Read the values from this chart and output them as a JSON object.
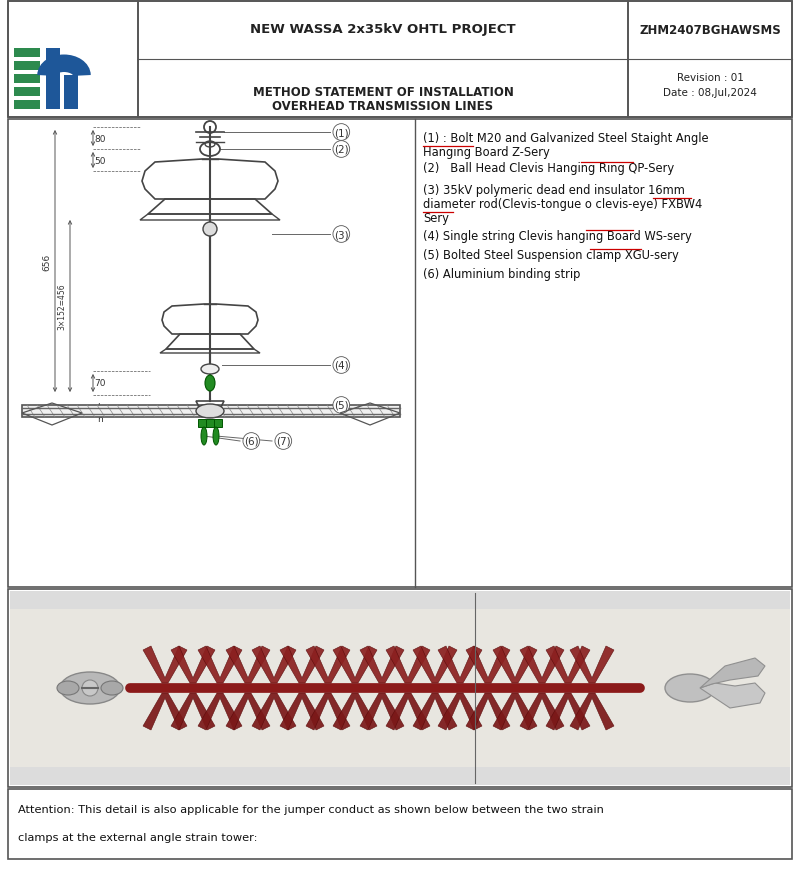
{
  "title_project": "NEW WASSA 2x35kV OHTL PROJECT",
  "title_doc": "ZHM2407BGHAWSMS",
  "subtitle1": "METHOD STATEMENT OF INSTALLATION",
  "subtitle2": "OVERHEAD TRANSMISSION LINES",
  "revision": "Revision : 01",
  "date": "Date : 08,Jul,2024",
  "item1": "(1) : Bolt M20 and Galvanized Steel Staight Angle",
  "item1b": "Hanging Board Z-Sery",
  "item2": "(2)   Ball Head Clevis Hanging Ring QP-Sery",
  "item3a": "(3) 35kV polymeric dead end insulator 16mm",
  "item3b": "diameter rod(Clevis-tongue o clevis-eye) FXBW4",
  "item3c": "Sery",
  "item4": "(4) Single string Clevis hanging Board WS-sery",
  "item5": "(5) Bolted Steel Suspension clamp XGU-sery",
  "item6": "(6) Aluminium binding strip",
  "attention_line1": "Attention: This detail is also applicable for the jumper conduct as shown below between the two strain",
  "attention_line2": "clamps at the external angle strain tower:",
  "dim_80": "80",
  "dim_50": "50",
  "dim_656": "656",
  "dim_3x152": "3×152=456",
  "dim_70": "70",
  "dim_h": "h",
  "bg": "#ffffff",
  "gray_bg": "#e8e8e8",
  "border": "#555555",
  "text_dark": "#111111",
  "red_underline": "#cc0000",
  "green_part": "#228B22",
  "blue_logo": "#1e5799"
}
